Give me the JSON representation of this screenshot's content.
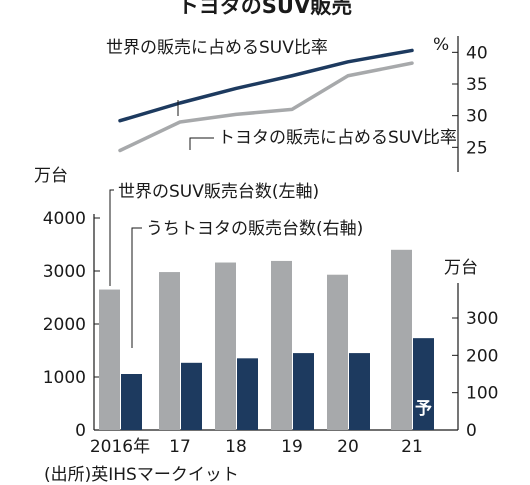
{
  "colors": {
    "gray_bar": "#a7a9ab",
    "navy_bar": "#1d3a5f",
    "navy_line": "#1d3a5f",
    "gray_line": "#a7a9ab",
    "text": "#1a1a1a"
  },
  "chart_data": [
    {
      "type": "line",
      "title": "トヨタのSUV販売",
      "x": [
        "2016",
        "2017",
        "2018",
        "2019",
        "2020",
        "2021"
      ],
      "unit": "%",
      "ylim": [
        23,
        41
      ],
      "yticks": [
        25,
        30,
        35,
        40
      ],
      "series": [
        {
          "name": "世界の販売に占めるSUV比率",
          "values": [
            29.2,
            32.0,
            34.3,
            36.3,
            38.5,
            40.3
          ]
        },
        {
          "name": "トヨタの販売に占めるSUV比率",
          "values": [
            24.5,
            29.0,
            30.2,
            31.0,
            36.3,
            38.3
          ]
        }
      ]
    },
    {
      "type": "bar",
      "categories": [
        "2016年",
        "17",
        "18",
        "19",
        "20",
        "21"
      ],
      "left_unit": "万台",
      "right_unit": "万台",
      "left_ylim": [
        0,
        4000
      ],
      "left_yticks": [
        0,
        1000,
        2000,
        3000,
        4000
      ],
      "right_ylim": [
        0,
        400
      ],
      "right_yticks": [
        0,
        100,
        200,
        300
      ],
      "forecast_label": "予",
      "series": [
        {
          "name": "世界のSUV販売台数(左軸)",
          "axis": "left",
          "values": [
            2650,
            2980,
            3160,
            3190,
            2930,
            3400
          ]
        },
        {
          "name": "うちトヨタの販売台数(右軸)",
          "axis": "right",
          "values": [
            150,
            180,
            192,
            206,
            206,
            246
          ]
        }
      ]
    }
  ],
  "source": "(出所)英IHSマークイット"
}
